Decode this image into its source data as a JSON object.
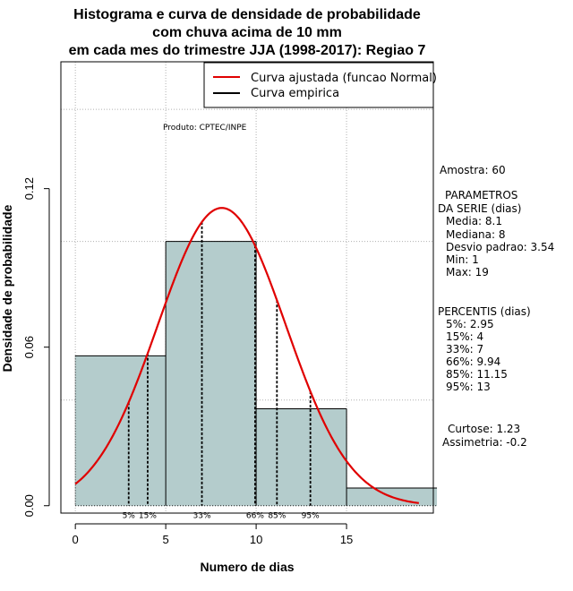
{
  "chart_data": {
    "type": "bar",
    "title_lines": [
      "Histograma e curva de densidade de probabilidade",
      "com chuva acima de 10 mm",
      "em cada mes do trimestre JJA (1998-2017): Regiao 7"
    ],
    "xlabel": "Numero de dias",
    "ylabel": "Densidade de probabilidade",
    "xlim": [
      -0.8,
      19.8
    ],
    "ylim": [
      -0.0028,
      0.168
    ],
    "x_ticks": [
      0,
      5,
      10,
      15
    ],
    "y_ticks": [
      0.0,
      0.06,
      0.12
    ],
    "y_tick_labels": [
      "0.00",
      "0.06",
      "0.12"
    ],
    "grid": true,
    "bins": [
      {
        "from": 0,
        "to": 5,
        "density": 0.0567
      },
      {
        "from": 5,
        "to": 10,
        "density": 0.1
      },
      {
        "from": 10,
        "to": 15,
        "density": 0.0367
      },
      {
        "from": 15,
        "to": 20,
        "density": 0.0067
      }
    ],
    "bar_color": "#b4cccc",
    "normal_curve": {
      "name": "Curva ajustada (funcao Normal)",
      "mean": 8.1,
      "sd": 3.54,
      "x_from": 0,
      "x_to": 19,
      "color": "#e00000"
    },
    "percentiles": [
      {
        "label": "5%",
        "value": 2.95
      },
      {
        "label": "15%",
        "value": 4
      },
      {
        "label": "33%",
        "value": 7
      },
      {
        "label": "66%",
        "value": 9.94
      },
      {
        "label": "85%",
        "value": 11.15
      },
      {
        "label": "95%",
        "value": 13
      }
    ],
    "legend": {
      "placement": "top-right",
      "entries": [
        {
          "label": "Curva ajustada (funcao Normal)",
          "color": "#e00000"
        },
        {
          "label": "Curva empirica",
          "color": "#000000"
        }
      ]
    },
    "annotation": "Produto: CPTEC/INPE"
  },
  "side_panel": {
    "amostra": "Amostra: 60",
    "params_title_1": "PARAMETROS",
    "params_title_2": "DA SERIE (dias)",
    "params": [
      "Media: 8.1",
      "Mediana: 8",
      "Desvio padrao: 3.54",
      "Min: 1",
      "Max: 19"
    ],
    "percentis_title": "PERCENTIS (dias)",
    "percentis": [
      "5%: 2.95",
      "15%: 4",
      "33%: 7",
      "66%: 9.94",
      "85%: 11.15",
      "95%: 13"
    ],
    "curtose": "Curtose: 1.23",
    "assimetria": "Assimetria: -0.2"
  }
}
